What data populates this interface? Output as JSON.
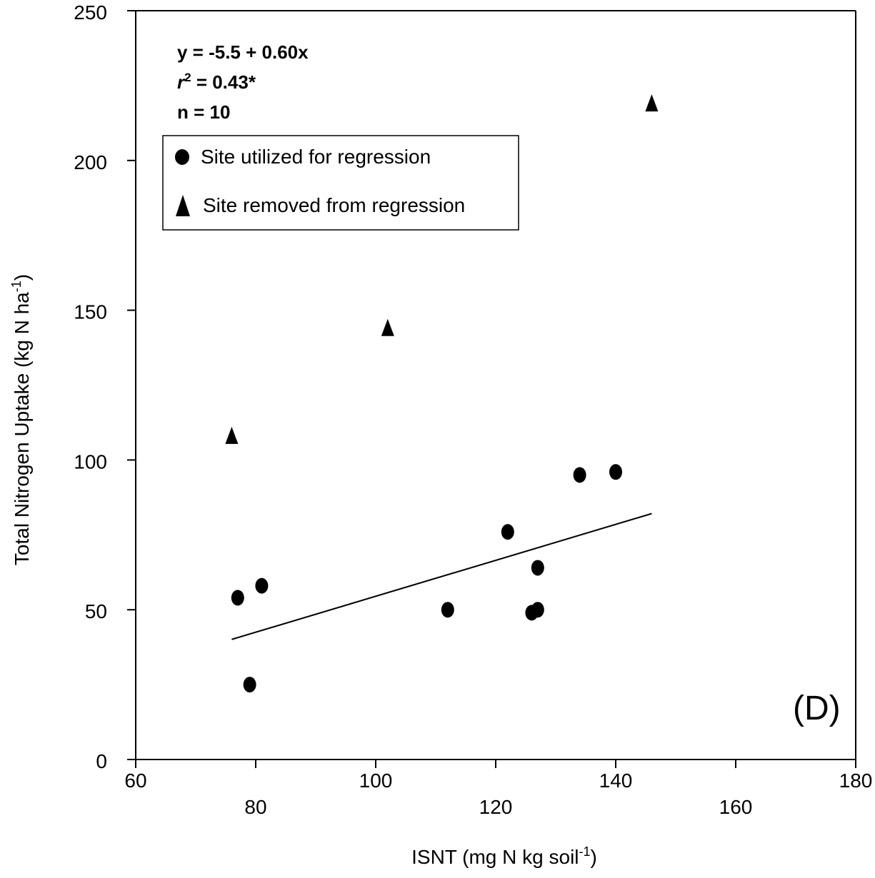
{
  "chart_data": {
    "type": "scatter",
    "xlabel_main": "ISNT (mg N kg soil",
    "xlabel_sup": "-1",
    "xlabel_end": ")",
    "ylabel_main": "Total Nitrogen Uptake (kg N ha",
    "ylabel_sup": "-1",
    "ylabel_end": ")",
    "xlim": [
      60,
      180
    ],
    "ylim": [
      0,
      250
    ],
    "xticks": [
      60,
      80,
      100,
      120,
      140,
      160,
      180
    ],
    "yticks": [
      0,
      50,
      100,
      150,
      200,
      250
    ],
    "grid": false,
    "legend_placement": "top-left",
    "panel_label": "(D)",
    "annotations": {
      "equation": "y = -5.5 + 0.60x",
      "r2_r": "r",
      "r2_sup": "2",
      "r2_rest": " = 0.43*",
      "n": "n = 10"
    },
    "series": [
      {
        "name": "Site utilized for regression",
        "marker": "circle",
        "points": [
          {
            "x": 77,
            "y": 54
          },
          {
            "x": 79,
            "y": 25
          },
          {
            "x": 81,
            "y": 58
          },
          {
            "x": 112,
            "y": 50
          },
          {
            "x": 122,
            "y": 76
          },
          {
            "x": 126,
            "y": 49
          },
          {
            "x": 127,
            "y": 50
          },
          {
            "x": 127,
            "y": 64
          },
          {
            "x": 134,
            "y": 95
          },
          {
            "x": 140,
            "y": 96
          }
        ]
      },
      {
        "name": "Site removed from regression",
        "marker": "triangle",
        "points": [
          {
            "x": 76,
            "y": 108
          },
          {
            "x": 102,
            "y": 144
          },
          {
            "x": 146,
            "y": 219
          }
        ]
      }
    ],
    "regression": {
      "intercept": -5.5,
      "slope": 0.6,
      "x_from": 76,
      "x_to": 146
    }
  },
  "colors": {
    "marker": "#000000",
    "axis": "#000000",
    "line": "#000000"
  }
}
